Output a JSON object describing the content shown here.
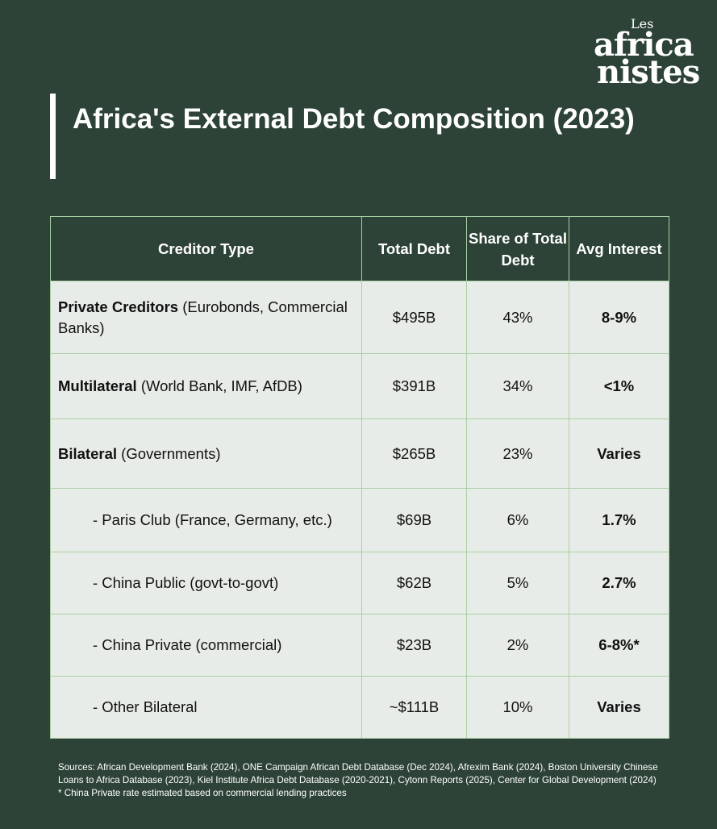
{
  "logo": {
    "line1": "Les",
    "line2": "africa",
    "line3": "nistes"
  },
  "header": {
    "title": "Africa's External Debt Composition (2023)"
  },
  "table": {
    "columns": [
      "Creditor Type",
      "Total Debt",
      "Share of Total Debt",
      "Avg Interest"
    ],
    "rows": [
      {
        "label_bold": "Private Creditors",
        "label": "(Eurobonds, Commercial Banks)",
        "total_debt": "$495B",
        "share": "43%",
        "interest": "8-9%"
      },
      {
        "label_bold": "Multilateral",
        "label": "(World Bank, IMF, AfDB)",
        "total_debt": "$391B",
        "share": "34%",
        "interest": "<1%"
      },
      {
        "label_bold": "Bilateral",
        "label": "(Governments)",
        "total_debt": "$265B",
        "share": "23%",
        "interest": "Varies"
      },
      {
        "label": "- Paris Club (France, Germany, etc.)",
        "total_debt": "$69B",
        "share": "6%",
        "interest": "1.7%"
      },
      {
        "label": "- China Public (govt-to-govt)",
        "total_debt": "$62B",
        "share": "5%",
        "interest": "2.7%"
      },
      {
        "label": "- China Private (commercial)",
        "total_debt": "$23B",
        "share": "2%",
        "interest": "6-8%*"
      },
      {
        "label": "- Other Bilateral",
        "total_debt": "~$111B",
        "share": "10%",
        "interest": "Varies"
      }
    ]
  },
  "footer": {
    "sources": "Sources: African Development Bank (2024), ONE Campaign African Debt Database (Dec 2024), Afrexim Bank (2024), Boston University Chinese Loans to Africa Database (2023), Kiel Institute Africa Debt Database (2020-2021), Cytonn Reports (2025), Center for Global Development (2024)",
    "note": "* China Private rate estimated based on commercial lending practices"
  }
}
